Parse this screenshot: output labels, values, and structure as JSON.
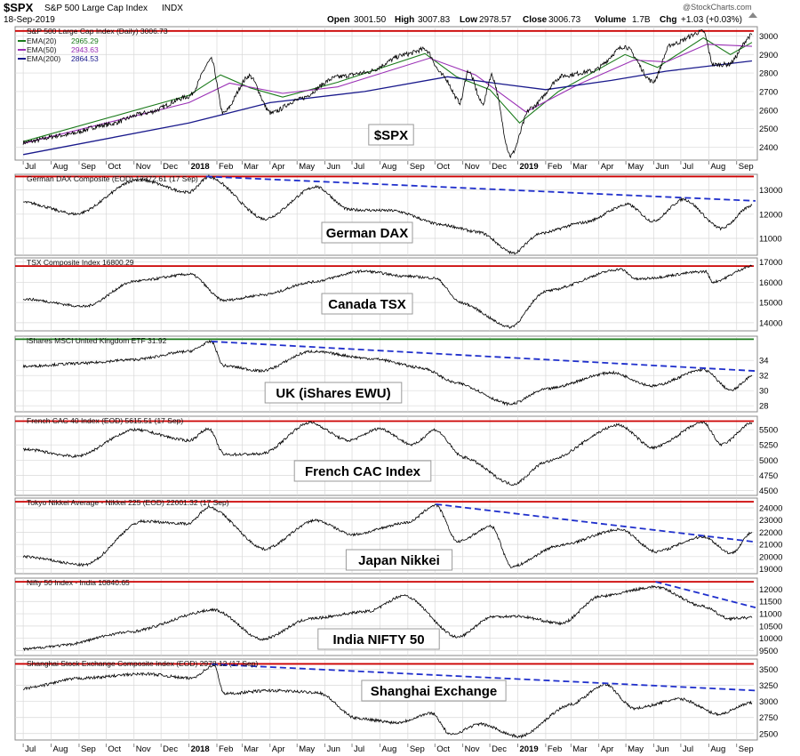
{
  "header": {
    "symbol": "$SPX",
    "name": "S&P 500 Large Cap Index",
    "exchange": "INDX",
    "date": "18-Sep-2019",
    "open_label": "Open",
    "open": "3001.50",
    "high_label": "High",
    "high": "3007.83",
    "low_label": "Low",
    "low": "2978.57",
    "close_label": "Close",
    "close": "3006.73",
    "volume_label": "Volume",
    "volume": "1.7B",
    "chg_label": "Chg",
    "chg": "+1.03 (+0.03%)",
    "brand": "@StockCharts.com"
  },
  "x_axis": {
    "labels": [
      "Jul",
      "Aug",
      "Sep",
      "Oct",
      "Nov",
      "Dec",
      "2018",
      "Feb",
      "Mar",
      "Apr",
      "May",
      "Jun",
      "Jul",
      "Aug",
      "Sep",
      "Oct",
      "Nov",
      "Dec",
      "2019",
      "Feb",
      "Mar",
      "Apr",
      "May",
      "Jun",
      "Jul",
      "Aug",
      "Sep"
    ],
    "bold": [
      "2018",
      "2019"
    ]
  },
  "colors": {
    "price": "#000000",
    "resistance": "#cc0000",
    "trend": "#1f2fcc",
    "ema20": "#1a7a1a",
    "ema50": "#9a2fb5",
    "ema200": "#1a1a8c",
    "uk_line": "#1a7a1a",
    "grid": "#d8d8d8",
    "panel_bg": "#ffffff"
  },
  "chart_data": [
    {
      "type": "line",
      "title": "S&P 500 Large Cap Index (Daily) 3006.73",
      "label": "$SPX",
      "yticks": [
        2400,
        2500,
        2600,
        2700,
        2800,
        2900,
        3000
      ],
      "ylim": [
        2330,
        3050
      ],
      "resistance": 3027,
      "points": [
        [
          "2017-07-01",
          2425
        ],
        [
          "2017-08-15",
          2465
        ],
        [
          "2017-10-01",
          2520
        ],
        [
          "2017-11-15",
          2585
        ],
        [
          "2018-01-01",
          2673
        ],
        [
          "2018-01-26",
          2872
        ],
        [
          "2018-02-08",
          2581
        ],
        [
          "2018-03-09",
          2786
        ],
        [
          "2018-04-02",
          2582
        ],
        [
          "2018-05-01",
          2654
        ],
        [
          "2018-06-15",
          2779
        ],
        [
          "2018-07-15",
          2801
        ],
        [
          "2018-08-30",
          2901
        ],
        [
          "2018-09-20",
          2930
        ],
        [
          "2018-10-10",
          2785
        ],
        [
          "2018-10-29",
          2641
        ],
        [
          "2018-11-07",
          2813
        ],
        [
          "2018-11-23",
          2632
        ],
        [
          "2018-12-03",
          2790
        ],
        [
          "2018-12-24",
          2351
        ],
        [
          "2019-01-15",
          2610
        ],
        [
          "2019-02-20",
          2785
        ],
        [
          "2019-03-25",
          2810
        ],
        [
          "2019-04-30",
          2945
        ],
        [
          "2019-05-31",
          2751
        ],
        [
          "2019-06-20",
          2954
        ],
        [
          "2019-07-26",
          3025
        ],
        [
          "2019-08-06",
          2844
        ],
        [
          "2019-08-23",
          2847
        ],
        [
          "2019-09-18",
          3006
        ]
      ],
      "ema": [
        {
          "name": "EMA(20)",
          "value": "2965.29",
          "points": [
            [
              "2017-07-01",
              2430
            ],
            [
              "2018-01-01",
              2680
            ],
            [
              "2018-02-05",
              2790
            ],
            [
              "2018-03-10",
              2720
            ],
            [
              "2018-04-15",
              2670
            ],
            [
              "2018-06-15",
              2750
            ],
            [
              "2018-09-20",
              2905
            ],
            [
              "2018-10-25",
              2780
            ],
            [
              "2018-12-01",
              2710
            ],
            [
              "2019-01-03",
              2530
            ],
            [
              "2019-02-15",
              2700
            ],
            [
              "2019-04-30",
              2900
            ],
            [
              "2019-06-05",
              2830
            ],
            [
              "2019-07-26",
              2990
            ],
            [
              "2019-08-25",
              2900
            ],
            [
              "2019-09-18",
              2965
            ]
          ]
        },
        {
          "name": "EMA(50)",
          "value": "2943.63",
          "points": [
            [
              "2017-07-01",
              2420
            ],
            [
              "2018-01-01",
              2640
            ],
            [
              "2018-02-15",
              2745
            ],
            [
              "2018-04-15",
              2690
            ],
            [
              "2018-06-15",
              2725
            ],
            [
              "2018-09-25",
              2880
            ],
            [
              "2018-11-15",
              2790
            ],
            [
              "2019-01-10",
              2590
            ],
            [
              "2019-03-10",
              2740
            ],
            [
              "2019-05-10",
              2870
            ],
            [
              "2019-06-15",
              2860
            ],
            [
              "2019-07-30",
              2955
            ],
            [
              "2019-09-18",
              2944
            ]
          ]
        },
        {
          "name": "EMA(200)",
          "value": "2864.53",
          "points": [
            [
              "2017-07-01",
              2360
            ],
            [
              "2018-01-01",
              2530
            ],
            [
              "2018-04-01",
              2640
            ],
            [
              "2018-07-15",
              2700
            ],
            [
              "2018-10-15",
              2780
            ],
            [
              "2018-12-15",
              2740
            ],
            [
              "2019-02-01",
              2710
            ],
            [
              "2019-04-15",
              2760
            ],
            [
              "2019-06-15",
              2810
            ],
            [
              "2019-09-18",
              2865
            ]
          ]
        }
      ]
    },
    {
      "type": "line",
      "title": "German DAX Composite (EOD) 12372.61 (17 Sep)",
      "label": "German DAX",
      "yticks": [
        11000,
        12000,
        13000
      ],
      "ylim": [
        10300,
        13650
      ],
      "resistance": 13560,
      "trendline": [
        [
          "2018-01-20",
          13560
        ],
        [
          "2019-09-18",
          12550
        ]
      ],
      "points": [
        [
          "2017-07-01",
          12500
        ],
        [
          "2017-08-29",
          12000
        ],
        [
          "2017-11-05",
          13450
        ],
        [
          "2018-01-01",
          12900
        ],
        [
          "2018-01-23",
          13560
        ],
        [
          "2018-03-26",
          11790
        ],
        [
          "2018-05-22",
          13150
        ],
        [
          "2018-06-28",
          12180
        ],
        [
          "2018-08-15",
          12150
        ],
        [
          "2018-10-10",
          11550
        ],
        [
          "2018-11-20",
          11250
        ],
        [
          "2018-12-27",
          10380
        ],
        [
          "2019-01-25",
          11200
        ],
        [
          "2019-03-15",
          11650
        ],
        [
          "2019-05-03",
          12410
        ],
        [
          "2019-05-31",
          11700
        ],
        [
          "2019-07-04",
          12630
        ],
        [
          "2019-08-15",
          11400
        ],
        [
          "2019-09-18",
          12372
        ]
      ]
    },
    {
      "type": "line",
      "title": "TSX Composite Index 16800.29",
      "label": "Canada TSX",
      "yticks": [
        14000,
        15000,
        16000,
        17000
      ],
      "ylim": [
        13600,
        17200
      ],
      "resistance": 16800,
      "points": [
        [
          "2017-07-01",
          15180
        ],
        [
          "2017-09-08",
          14800
        ],
        [
          "2017-11-01",
          16050
        ],
        [
          "2018-01-03",
          16400
        ],
        [
          "2018-02-08",
          15100
        ],
        [
          "2018-03-28",
          15400
        ],
        [
          "2018-05-15",
          16000
        ],
        [
          "2018-07-13",
          16550
        ],
        [
          "2018-08-30",
          16300
        ],
        [
          "2018-10-02",
          16200
        ],
        [
          "2018-10-29",
          15000
        ],
        [
          "2018-12-24",
          13780
        ],
        [
          "2019-01-31",
          15550
        ],
        [
          "2019-04-25",
          16650
        ],
        [
          "2019-05-13",
          16150
        ],
        [
          "2019-07-29",
          16530
        ],
        [
          "2019-08-05",
          16000
        ],
        [
          "2019-09-18",
          16800
        ]
      ]
    },
    {
      "type": "line",
      "title": "iShares MSCI United Kingdom ETF 31.92",
      "label": "UK (iShares EWU)",
      "yticks": [
        28,
        30,
        32,
        34
      ],
      "ylim": [
        27.2,
        37.2
      ],
      "resistance": 36.8,
      "trendline": [
        [
          "2018-01-26",
          36.5
        ],
        [
          "2019-09-18",
          32.6
        ]
      ],
      "points": [
        [
          "2017-07-01",
          33.2
        ],
        [
          "2017-09-01",
          33.6
        ],
        [
          "2017-11-01",
          34.1
        ],
        [
          "2018-01-01",
          35.2
        ],
        [
          "2018-01-26",
          36.5
        ],
        [
          "2018-02-08",
          33.3
        ],
        [
          "2018-03-23",
          32.6
        ],
        [
          "2018-05-16",
          35.2
        ],
        [
          "2018-07-26",
          34.2
        ],
        [
          "2018-09-17",
          33.0
        ],
        [
          "2018-10-25",
          31.0
        ],
        [
          "2018-12-24",
          28.2
        ],
        [
          "2019-02-01",
          30.2
        ],
        [
          "2019-04-15",
          32.4
        ],
        [
          "2019-05-31",
          30.6
        ],
        [
          "2019-07-26",
          32.8
        ],
        [
          "2019-08-26",
          30.0
        ],
        [
          "2019-09-18",
          31.92
        ]
      ]
    },
    {
      "type": "line",
      "title": "French CAC 40 Index (EOD) 5615.51 (17 Sep)",
      "label": "French CAC Index",
      "yticks": [
        4500,
        4750,
        5000,
        5250,
        5500
      ],
      "ylim": [
        4420,
        5720
      ],
      "resistance": 5640,
      "points": [
        [
          "2017-07-01",
          5180
        ],
        [
          "2017-08-29",
          5060
        ],
        [
          "2017-11-01",
          5500
        ],
        [
          "2018-01-01",
          5320
        ],
        [
          "2018-01-23",
          5520
        ],
        [
          "2018-02-09",
          5090
        ],
        [
          "2018-03-23",
          5100
        ],
        [
          "2018-05-15",
          5620
        ],
        [
          "2018-06-27",
          5320
        ],
        [
          "2018-08-01",
          5520
        ],
        [
          "2018-09-06",
          5250
        ],
        [
          "2018-10-01",
          5500
        ],
        [
          "2018-11-01",
          5050
        ],
        [
          "2018-12-27",
          4600
        ],
        [
          "2019-02-01",
          4970
        ],
        [
          "2019-04-23",
          5580
        ],
        [
          "2019-05-31",
          5200
        ],
        [
          "2019-07-26",
          5620
        ],
        [
          "2019-08-15",
          5250
        ],
        [
          "2019-09-18",
          5615
        ]
      ]
    },
    {
      "type": "line",
      "title": "Tokyo Nikkei Average - Nikkei 225 (EOD) 22001.32 (17 Sep)",
      "label": "Japan Nikkei",
      "yticks": [
        19000,
        20000,
        21000,
        22000,
        23000,
        24000
      ],
      "ylim": [
        18600,
        24800
      ],
      "resistance": 24500,
      "trendline": [
        [
          "2018-10-02",
          24300
        ],
        [
          "2019-09-18",
          21200
        ]
      ],
      "points": [
        [
          "2017-07-01",
          20000
        ],
        [
          "2017-09-08",
          19300
        ],
        [
          "2017-11-09",
          22900
        ],
        [
          "2018-01-01",
          22700
        ],
        [
          "2018-01-23",
          24100
        ],
        [
          "2018-03-26",
          20600
        ],
        [
          "2018-05-21",
          23000
        ],
        [
          "2018-07-02",
          21800
        ],
        [
          "2018-09-01",
          22800
        ],
        [
          "2018-10-02",
          24250
        ],
        [
          "2018-10-26",
          21200
        ],
        [
          "2018-12-03",
          22500
        ],
        [
          "2018-12-25",
          19150
        ],
        [
          "2019-02-15",
          20900
        ],
        [
          "2019-04-25",
          22250
        ],
        [
          "2019-06-03",
          20400
        ],
        [
          "2019-07-26",
          21650
        ],
        [
          "2019-08-26",
          20250
        ],
        [
          "2019-09-18",
          22001
        ]
      ]
    },
    {
      "type": "line",
      "title": "Nifty 50 Index - India 10840.65",
      "label": "India NIFTY 50",
      "yticks": [
        9500,
        10000,
        10500,
        11000,
        11500,
        12000
      ],
      "ylim": [
        9300,
        12450
      ],
      "resistance": 12300,
      "trendline": [
        [
          "2019-06-03",
          12300
        ],
        [
          "2019-09-18",
          11250
        ]
      ],
      "points": [
        [
          "2017-07-01",
          9550
        ],
        [
          "2017-08-10",
          9700
        ],
        [
          "2017-10-25",
          10250
        ],
        [
          "2018-01-29",
          11170
        ],
        [
          "2018-03-23",
          9950
        ],
        [
          "2018-05-15",
          10800
        ],
        [
          "2018-07-20",
          11100
        ],
        [
          "2018-08-28",
          11760
        ],
        [
          "2018-10-26",
          10030
        ],
        [
          "2018-12-03",
          10880
        ],
        [
          "2019-01-01",
          10900
        ],
        [
          "2019-02-19",
          10600
        ],
        [
          "2019-04-01",
          11700
        ],
        [
          "2019-06-03",
          12100
        ],
        [
          "2019-07-26",
          11300
        ],
        [
          "2019-08-23",
          10800
        ],
        [
          "2019-09-18",
          10840
        ]
      ]
    },
    {
      "type": "line",
      "title": "Shanghai Stock Exchange Composite Index (EOD) 2978.12 (17 Sep)",
      "label": "Shanghai Exchange",
      "yticks": [
        2500,
        2750,
        3000,
        3250,
        3500
      ],
      "ylim": [
        2400,
        3660
      ],
      "resistance": 3585,
      "trendline": [
        [
          "2018-01-26",
          3580
        ],
        [
          "2019-09-18",
          3170
        ]
      ],
      "points": [
        [
          "2017-07-01",
          3200
        ],
        [
          "2017-09-01",
          3360
        ],
        [
          "2017-11-14",
          3430
        ],
        [
          "2018-01-03",
          3360
        ],
        [
          "2018-01-29",
          3560
        ],
        [
          "2018-02-09",
          3120
        ],
        [
          "2018-04-01",
          3170
        ],
        [
          "2018-05-25",
          3140
        ],
        [
          "2018-07-05",
          2740
        ],
        [
          "2018-08-20",
          2670
        ],
        [
          "2018-09-28",
          2820
        ],
        [
          "2018-10-18",
          2480
        ],
        [
          "2018-11-20",
          2650
        ],
        [
          "2019-01-03",
          2450
        ],
        [
          "2019-02-28",
          2950
        ],
        [
          "2019-04-08",
          3270
        ],
        [
          "2019-05-10",
          2890
        ],
        [
          "2019-07-01",
          3040
        ],
        [
          "2019-08-12",
          2800
        ],
        [
          "2019-09-18",
          2978
        ]
      ]
    }
  ]
}
